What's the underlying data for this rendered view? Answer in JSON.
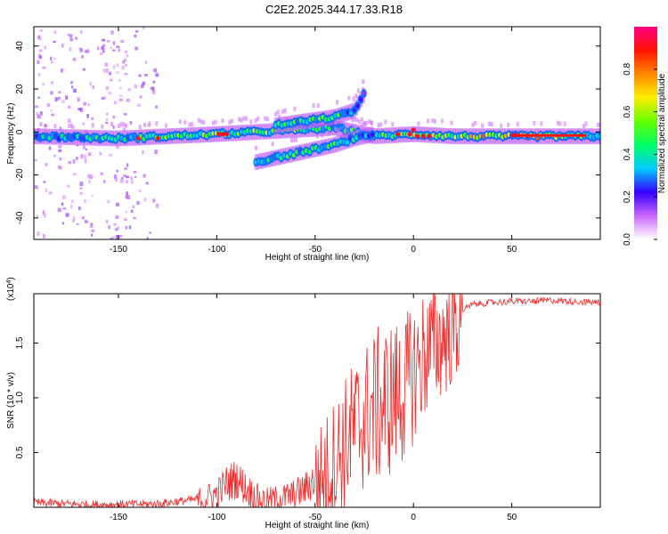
{
  "figure": {
    "title": "C2E2.2025.344.17.33.R18",
    "colors": {
      "snr_line": "#ee2b2b",
      "axis": "#000000",
      "background": "#ffffff"
    }
  },
  "chart_data": [
    {
      "type": "heatmap",
      "name": "spectrogram",
      "xlabel": "Height of straight line (km)",
      "ylabel": "Frequency (Hz)",
      "xlim": [
        -193,
        95
      ],
      "ylim": [
        -50,
        49
      ],
      "xticks": [
        -150,
        -100,
        -50,
        0,
        50
      ],
      "yticks": [
        -40,
        -20,
        0,
        20,
        40
      ],
      "grid": false,
      "features": [
        {
          "name": "main-band",
          "x": [
            -193,
            -150,
            -100,
            -60,
            -40,
            -20,
            0,
            20,
            50,
            95
          ],
          "freq": [
            -2,
            -3,
            -1,
            1,
            2,
            -2,
            -1,
            -2,
            -2,
            -2
          ],
          "amplitude": [
            0.35,
            0.4,
            0.6,
            0.5,
            0.45,
            0.45,
            0.6,
            0.55,
            0.85,
            0.45
          ]
        },
        {
          "name": "upper-streak",
          "x": [
            -70,
            -55,
            -40,
            -30,
            -25
          ],
          "freq": [
            3,
            5,
            7,
            10,
            18
          ],
          "amplitude": [
            0.45,
            0.45,
            0.5,
            0.3,
            0.2
          ]
        },
        {
          "name": "lower-streak",
          "x": [
            -80,
            -65,
            -50,
            -40,
            -30,
            -20
          ],
          "freq": [
            -14,
            -11,
            -8,
            -6,
            -3,
            -1
          ],
          "amplitude": [
            0.35,
            0.45,
            0.45,
            0.45,
            0.4,
            0.3
          ]
        }
      ],
      "colorbar": {
        "label": "Normalized spectral amplitude",
        "range": [
          0,
          1
        ],
        "ticks": [
          0.0,
          0.2,
          0.4,
          0.6,
          0.8
        ],
        "tick_labels": [
          "0.0",
          "0.2",
          "0.4",
          "0.6",
          "0.8"
        ],
        "colors": [
          "#ffffff",
          "#cc66ff",
          "#3300ff",
          "#00ccff",
          "#00ff66",
          "#66ff00",
          "#ffee00",
          "#ff8800",
          "#ff1100",
          "#ff0088"
        ]
      }
    },
    {
      "type": "line",
      "name": "snr",
      "xlabel": "Height of straight line (km)",
      "ylabel": "SNR (10 * v/v)",
      "y_multiplier": "(x10",
      "y_multiplier_exponent": "4",
      "y_multiplier_close": ")",
      "xlim": [
        -193,
        95
      ],
      "ylim": [
        0,
        1.95
      ],
      "xticks": [
        -150,
        -100,
        -50,
        0,
        50
      ],
      "yticks": [
        0.5,
        1.0,
        1.5
      ],
      "ytick_labels": [
        "0.5",
        "1.0",
        "1.5"
      ],
      "grid": false,
      "series": [
        {
          "name": "SNR",
          "x": [
            -193,
            -160,
            -130,
            -110,
            -100,
            -95,
            -90,
            -85,
            -80,
            -75,
            -70,
            -65,
            -60,
            -55,
            -50,
            -45,
            -40,
            -35,
            -30,
            -25,
            -20,
            -15,
            -10,
            -5,
            0,
            5,
            10,
            15,
            20,
            25,
            30,
            40,
            50,
            60,
            70,
            80,
            95
          ],
          "y": [
            0.05,
            0.03,
            0.04,
            0.08,
            0.15,
            0.25,
            0.3,
            0.2,
            0.12,
            0.08,
            0.1,
            0.12,
            0.15,
            0.2,
            0.3,
            0.4,
            0.55,
            0.7,
            0.85,
            0.95,
            1.05,
            1.1,
            1.15,
            1.2,
            1.35,
            1.5,
            1.6,
            1.65,
            1.72,
            1.8,
            1.85,
            1.87,
            1.88,
            1.88,
            1.89,
            1.88,
            1.87
          ]
        }
      ]
    }
  ]
}
